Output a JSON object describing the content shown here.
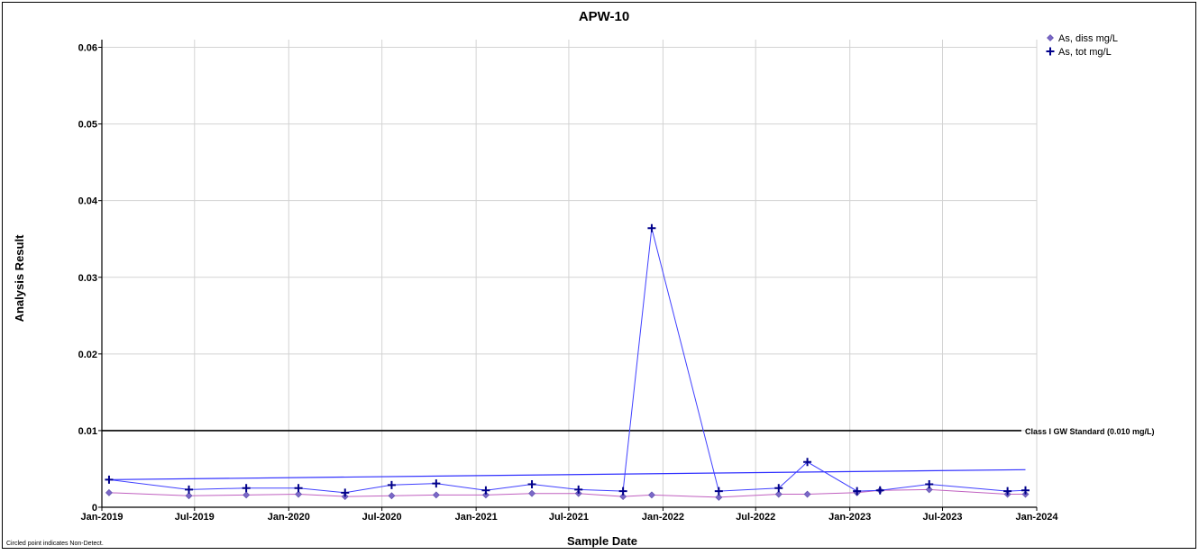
{
  "chart_data": {
    "type": "line",
    "title": "APW-10",
    "xlabel": "Sample Date",
    "ylabel": "Analysis Result",
    "x_range": [
      "2019-01-01",
      "2024-01-01"
    ],
    "ylim": [
      0,
      0.061
    ],
    "y_ticks": [
      0,
      0.01,
      0.02,
      0.03,
      0.04,
      0.05,
      0.06
    ],
    "y_tick_labels": [
      "0",
      "0.01",
      "0.02",
      "0.03",
      "0.04",
      "0.05",
      "0.06"
    ],
    "x_ticks": [
      "2019-01-01",
      "2019-07-01",
      "2020-01-01",
      "2020-07-01",
      "2021-01-01",
      "2021-07-01",
      "2022-01-01",
      "2022-07-01",
      "2023-01-01",
      "2023-07-01",
      "2024-01-01"
    ],
    "x_tick_labels": [
      "Jan-2019",
      "Jul-2019",
      "Jan-2020",
      "Jul-2020",
      "Jan-2021",
      "Jul-2021",
      "Jan-2022",
      "Jul-2022",
      "Jan-2023",
      "Jul-2023",
      "Jan-2024"
    ],
    "grid": true,
    "legend_position": "top-right",
    "series": [
      {
        "name": "As, diss mg/L",
        "marker": "diamond",
        "color": "#7B68C8",
        "points": [
          {
            "x": "2019-01-15",
            "y": 0.0019
          },
          {
            "x": "2019-06-20",
            "y": 0.0015
          },
          {
            "x": "2019-10-10",
            "y": 0.0016
          },
          {
            "x": "2020-01-20",
            "y": 0.0017
          },
          {
            "x": "2020-04-20",
            "y": 0.0014
          },
          {
            "x": "2020-07-20",
            "y": 0.0015
          },
          {
            "x": "2020-10-15",
            "y": 0.0016
          },
          {
            "x": "2021-01-20",
            "y": 0.0016
          },
          {
            "x": "2021-04-20",
            "y": 0.0018
          },
          {
            "x": "2021-07-20",
            "y": 0.0018
          },
          {
            "x": "2021-10-15",
            "y": 0.0014
          },
          {
            "x": "2021-12-10",
            "y": 0.0016
          },
          {
            "x": "2022-04-20",
            "y": 0.0013
          },
          {
            "x": "2022-08-15",
            "y": 0.0017
          },
          {
            "x": "2022-10-10",
            "y": 0.0017
          },
          {
            "x": "2023-01-15",
            "y": 0.0019
          },
          {
            "x": "2023-03-01",
            "y": 0.0022
          },
          {
            "x": "2023-06-05",
            "y": 0.0023
          },
          {
            "x": "2023-11-05",
            "y": 0.0017
          },
          {
            "x": "2023-12-10",
            "y": 0.0017
          }
        ]
      },
      {
        "name": "As, tot mg/L",
        "marker": "plus",
        "color": "#00008B",
        "line_color": "#4040FF",
        "points": [
          {
            "x": "2019-01-15",
            "y": 0.0036
          },
          {
            "x": "2019-06-20",
            "y": 0.0023
          },
          {
            "x": "2019-10-10",
            "y": 0.0025
          },
          {
            "x": "2020-01-20",
            "y": 0.0025
          },
          {
            "x": "2020-04-20",
            "y": 0.0019
          },
          {
            "x": "2020-07-20",
            "y": 0.0029
          },
          {
            "x": "2020-10-15",
            "y": 0.0031
          },
          {
            "x": "2021-01-20",
            "y": 0.0022
          },
          {
            "x": "2021-04-20",
            "y": 0.003
          },
          {
            "x": "2021-07-20",
            "y": 0.0023
          },
          {
            "x": "2021-10-15",
            "y": 0.0021
          },
          {
            "x": "2021-12-10",
            "y": 0.0364
          },
          {
            "x": "2022-04-20",
            "y": 0.0021
          },
          {
            "x": "2022-08-15",
            "y": 0.0025
          },
          {
            "x": "2022-10-10",
            "y": 0.0059
          },
          {
            "x": "2023-01-15",
            "y": 0.0021
          },
          {
            "x": "2023-03-01",
            "y": 0.0022
          },
          {
            "x": "2023-06-05",
            "y": 0.003
          },
          {
            "x": "2023-11-05",
            "y": 0.0021
          },
          {
            "x": "2023-12-10",
            "y": 0.0022
          }
        ],
        "trend": {
          "x": [
            "2019-01-15",
            "2023-12-10"
          ],
          "y": [
            0.0036,
            0.0049
          ]
        }
      }
    ],
    "reference_line": {
      "y": 0.01,
      "label": "Class I GW Standard (0.010 mg/L)",
      "color": "#000000"
    }
  },
  "footnote": "Circled point indicates Non-Detect."
}
